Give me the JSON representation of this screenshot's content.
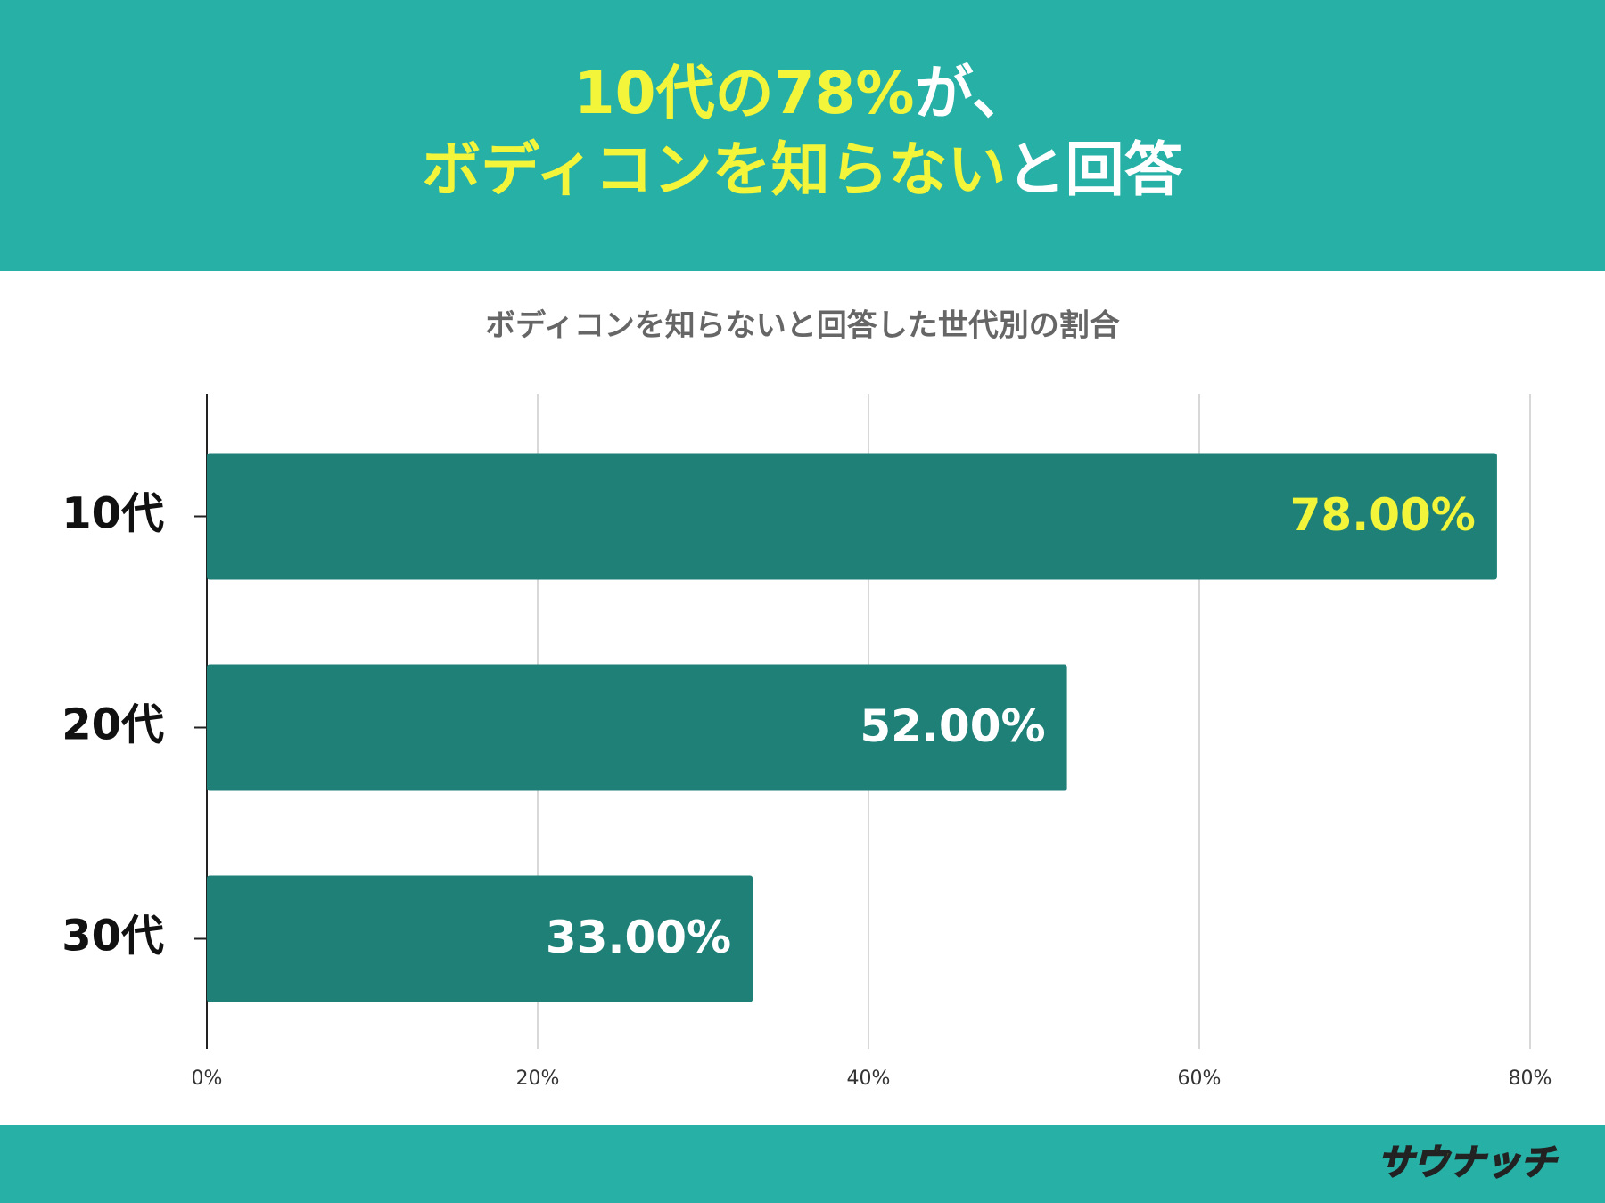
{
  "header": {
    "lines": [
      [
        {
          "text": "10代の78%",
          "color": "#f2f53a"
        },
        {
          "text": "が、",
          "color": "#ffffff"
        }
      ],
      [
        {
          "text": "ボディコンを知らない",
          "color": "#f2f53a"
        },
        {
          "text": "と回答",
          "color": "#ffffff"
        }
      ]
    ],
    "background": "#27b0a6"
  },
  "chart_data": {
    "type": "bar",
    "orientation": "horizontal",
    "title": "ボディコンを知らないと回答した世代別の割合",
    "categories": [
      "10代",
      "20代",
      "30代"
    ],
    "values": [
      78,
      52,
      33
    ],
    "value_labels": [
      "78.00%",
      "52.00%",
      "33.00%"
    ],
    "value_label_colors": [
      "#f2f53a",
      "#ffffff",
      "#ffffff"
    ],
    "color": "#1e8077",
    "xlim": [
      0,
      80
    ],
    "xticks": [
      {
        "value": 0,
        "label": "0%"
      },
      {
        "value": 20,
        "label": "20%"
      },
      {
        "value": 40,
        "label": "40%"
      },
      {
        "value": 60,
        "label": "60%"
      },
      {
        "value": 80,
        "label": "80%"
      }
    ],
    "grid": true
  },
  "footer": {
    "logo": "サウナッチ"
  }
}
